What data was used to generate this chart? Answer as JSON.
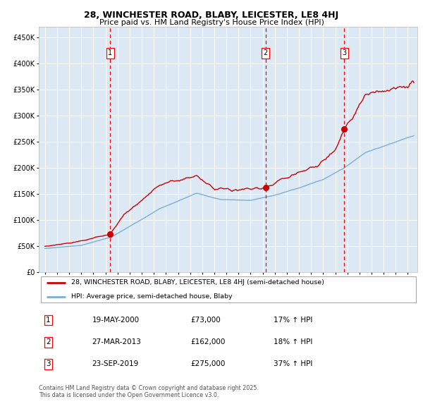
{
  "title1": "28, WINCHESTER ROAD, BLABY, LEICESTER, LE8 4HJ",
  "title2": "Price paid vs. HM Land Registry's House Price Index (HPI)",
  "bg_color": "#dce9f5",
  "grid_color": "#ffffff",
  "red_line_color": "#cc0000",
  "blue_line_color": "#7bafd4",
  "sale1_date_num": 2000.38,
  "sale1_price": 73000,
  "sale2_date_num": 2013.23,
  "sale2_price": 162000,
  "sale3_date_num": 2019.73,
  "sale3_price": 275000,
  "legend_label_red": "28, WINCHESTER ROAD, BLABY, LEICESTER, LE8 4HJ (semi-detached house)",
  "legend_label_blue": "HPI: Average price, semi-detached house, Blaby",
  "table_rows": [
    [
      "1",
      "19-MAY-2000",
      "£73,000",
      "17% ↑ HPI"
    ],
    [
      "2",
      "27-MAR-2013",
      "£162,000",
      "18% ↑ HPI"
    ],
    [
      "3",
      "23-SEP-2019",
      "£275,000",
      "37% ↑ HPI"
    ]
  ],
  "footer": "Contains HM Land Registry data © Crown copyright and database right 2025.\nThis data is licensed under the Open Government Licence v3.0.",
  "ylim": [
    0,
    470000
  ],
  "yticks": [
    0,
    50000,
    100000,
    150000,
    200000,
    250000,
    300000,
    350000,
    400000,
    450000
  ],
  "xlim_start": 1994.5,
  "xlim_end": 2025.8,
  "key_years_r": [
    1995.0,
    1997.5,
    2000.38,
    2001.5,
    2004.5,
    2007.5,
    2009.0,
    2010.5,
    2012.0,
    2013.23,
    2015.0,
    2016.5,
    2017.5,
    2019.0,
    2019.73,
    2020.5,
    2021.5,
    2022.5,
    2023.5,
    2025.0,
    2025.5
  ],
  "key_vals_r": [
    50000,
    58000,
    73000,
    110000,
    168000,
    185000,
    162000,
    158000,
    160000,
    162000,
    183000,
    195000,
    205000,
    232000,
    275000,
    300000,
    340000,
    348000,
    348000,
    358000,
    362000
  ],
  "key_years_b": [
    1995.0,
    1998.0,
    2000.5,
    2004.5,
    2007.5,
    2009.5,
    2012.0,
    2014.0,
    2016.0,
    2018.0,
    2019.73,
    2021.5,
    2023.0,
    2025.5
  ],
  "key_vals_b": [
    46000,
    52000,
    68000,
    122000,
    152000,
    140000,
    138000,
    148000,
    162000,
    178000,
    200000,
    230000,
    242000,
    262000
  ]
}
